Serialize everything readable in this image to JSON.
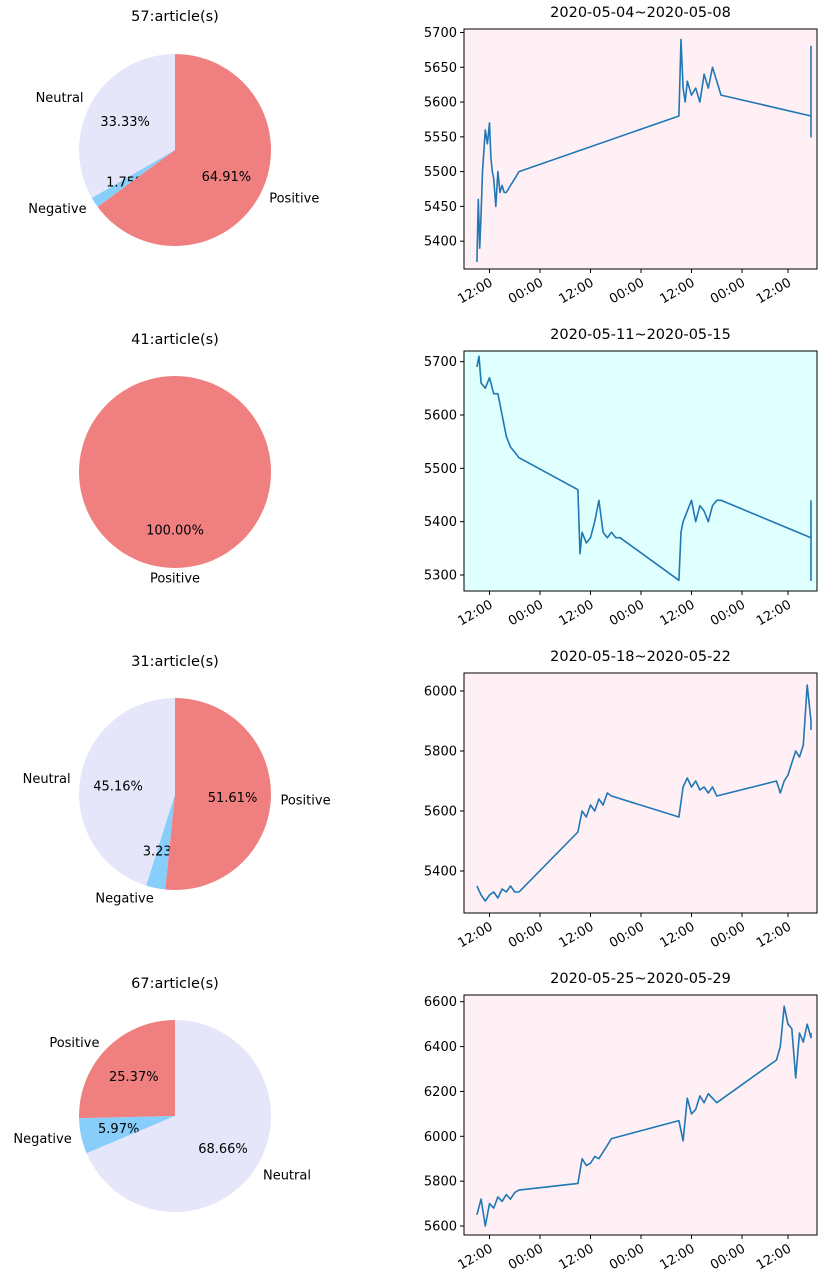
{
  "figure": {
    "background": "#ffffff",
    "line_color": "#1f77b4"
  },
  "chart_data": [
    {
      "type": "pie",
      "title": "57:article(s)",
      "slices": [
        {
          "label": "Neutral",
          "pct_label": "33.33%",
          "value": 19,
          "color": "#e6e6fa"
        },
        {
          "label": "Negative",
          "pct_label": "1.75%",
          "value": 1,
          "color": "#87cefa"
        },
        {
          "label": "Positive",
          "pct_label": "64.91%",
          "value": 37,
          "color": "#f08080"
        }
      ]
    },
    {
      "type": "line",
      "title": "2020-05-04~2020-05-08",
      "background": "#fff0f5",
      "x_tick_labels": [
        "12:00",
        "00:00",
        "12:00",
        "00:00",
        "12:00",
        "00:00",
        "12:00"
      ],
      "y_ticks": [
        5400,
        5450,
        5500,
        5550,
        5600,
        5650,
        5700
      ],
      "ylim": [
        5360,
        5705
      ],
      "x": [
        "2020-05-04 09:00",
        "2020-05-04 09:20",
        "2020-05-04 09:40",
        "2020-05-04 10:00",
        "2020-05-04 10:20",
        "2020-05-04 10:40",
        "2020-05-04 11:00",
        "2020-05-04 11:30",
        "2020-05-04 12:00",
        "2020-05-04 12:20",
        "2020-05-04 12:40",
        "2020-05-04 13:00",
        "2020-05-04 13:30",
        "2020-05-04 14:00",
        "2020-05-04 14:30",
        "2020-05-04 15:00",
        "2020-05-04 15:30",
        "2020-05-04 16:00",
        "2020-05-04 17:00",
        "2020-05-04 18:00",
        "2020-05-04 19:00",
        "2020-05-06 09:00",
        "2020-05-06 09:30",
        "2020-05-06 10:00",
        "2020-05-06 10:30",
        "2020-05-06 11:00",
        "2020-05-06 12:00",
        "2020-05-06 13:00",
        "2020-05-06 14:00",
        "2020-05-06 15:00",
        "2020-05-06 16:00",
        "2020-05-06 17:00",
        "2020-05-06 18:00",
        "2020-05-06 19:00",
        "2020-05-08 09:00",
        "2020-05-08 10:00",
        "2020-05-08 11:00",
        "2020-05-08 12:00",
        "2020-05-08 13:00",
        "2020-05-08 14:00",
        "2020-05-08 15:00",
        "2020-05-08 16:00",
        "2020-05-08 17:00",
        "2020-05-08 18:00",
        "2020-05-08 19:00"
      ],
      "y": [
        5370,
        5460,
        5390,
        5440,
        5500,
        5530,
        5560,
        5540,
        5570,
        5520,
        5500,
        5490,
        5450,
        5500,
        5470,
        5480,
        5470,
        5470,
        5480,
        5490,
        5500,
        5580,
        5690,
        5620,
        5600,
        5630,
        5610,
        5620,
        5600,
        5640,
        5620,
        5650,
        5630,
        5610,
        5580,
        5550,
        5590,
        5610,
        5630,
        5680,
        5650,
        5600,
        5610,
        5580,
        5590
      ]
    },
    {
      "type": "pie",
      "title": "41:article(s)",
      "slices": [
        {
          "label": "Positive",
          "pct_label": "100.00%",
          "value": 41,
          "color": "#f08080"
        }
      ]
    },
    {
      "type": "line",
      "title": "2020-05-11~2020-05-15",
      "background": "#e0ffff",
      "x_tick_labels": [
        "12:00",
        "00:00",
        "12:00",
        "00:00",
        "12:00",
        "00:00",
        "12:00"
      ],
      "y_ticks": [
        5300,
        5400,
        5500,
        5600,
        5700
      ],
      "ylim": [
        5270,
        5720
      ],
      "x": [
        "2020-05-11 09:00",
        "2020-05-11 09:30",
        "2020-05-11 10:00",
        "2020-05-11 11:00",
        "2020-05-11 12:00",
        "2020-05-11 13:00",
        "2020-05-11 14:00",
        "2020-05-11 15:00",
        "2020-05-11 15:30",
        "2020-05-11 16:00",
        "2020-05-11 17:00",
        "2020-05-11 18:00",
        "2020-05-11 19:00",
        "2020-05-12 09:00",
        "2020-05-12 09:30",
        "2020-05-12 10:00",
        "2020-05-12 11:00",
        "2020-05-12 12:00",
        "2020-05-12 13:00",
        "2020-05-12 14:00",
        "2020-05-12 15:00",
        "2020-05-12 16:00",
        "2020-05-12 17:00",
        "2020-05-12 18:00",
        "2020-05-12 19:00",
        "2020-05-13 09:00",
        "2020-05-13 09:30",
        "2020-05-13 10:00",
        "2020-05-13 11:00",
        "2020-05-13 12:00",
        "2020-05-13 13:00",
        "2020-05-13 14:00",
        "2020-05-13 15:00",
        "2020-05-13 16:00",
        "2020-05-13 17:00",
        "2020-05-13 18:00",
        "2020-05-13 19:00",
        "2020-05-15 09:00",
        "2020-05-15 09:30",
        "2020-05-15 10:00",
        "2020-05-15 11:00",
        "2020-05-15 12:00",
        "2020-05-15 13:00",
        "2020-05-15 14:00",
        "2020-05-15 15:00",
        "2020-05-15 16:00",
        "2020-05-15 17:00",
        "2020-05-15 18:00",
        "2020-05-15 19:00"
      ],
      "y": [
        5690,
        5710,
        5660,
        5650,
        5670,
        5640,
        5640,
        5600,
        5580,
        5560,
        5540,
        5530,
        5520,
        5460,
        5340,
        5380,
        5360,
        5370,
        5400,
        5440,
        5380,
        5370,
        5380,
        5370,
        5370,
        5290,
        5380,
        5400,
        5420,
        5440,
        5400,
        5430,
        5420,
        5400,
        5430,
        5440,
        5440,
        5370,
        5340,
        5330,
        5310,
        5320,
        5300,
        5290,
        5310,
        5300,
        5290,
        5300,
        5440
      ]
    },
    {
      "type": "pie",
      "title": "31:article(s)",
      "slices": [
        {
          "label": "Neutral",
          "pct_label": "45.16%",
          "value": 14,
          "color": "#e6e6fa"
        },
        {
          "label": "Negative",
          "pct_label": "3.23%",
          "value": 1,
          "color": "#87cefa"
        },
        {
          "label": "Positive",
          "pct_label": "51.61%",
          "value": 16,
          "color": "#f08080"
        }
      ]
    },
    {
      "type": "line",
      "title": "2020-05-18~2020-05-22",
      "background": "#fff0f5",
      "x_tick_labels": [
        "12:00",
        "00:00",
        "12:00",
        "00:00",
        "12:00",
        "00:00",
        "12:00"
      ],
      "y_ticks": [
        5400,
        5600,
        5800,
        6000
      ],
      "ylim": [
        5260,
        6060
      ],
      "x": [
        "2020-05-18 09:00",
        "2020-05-18 10:00",
        "2020-05-18 11:00",
        "2020-05-18 12:00",
        "2020-05-18 13:00",
        "2020-05-18 14:00",
        "2020-05-18 15:00",
        "2020-05-18 16:00",
        "2020-05-18 17:00",
        "2020-05-18 18:00",
        "2020-05-18 19:00",
        "2020-05-19 09:00",
        "2020-05-19 10:00",
        "2020-05-19 11:00",
        "2020-05-19 12:00",
        "2020-05-19 13:00",
        "2020-05-19 14:00",
        "2020-05-19 15:00",
        "2020-05-19 16:00",
        "2020-05-19 17:00",
        "2020-05-20 09:00",
        "2020-05-20 10:00",
        "2020-05-20 11:00",
        "2020-05-20 12:00",
        "2020-05-20 13:00",
        "2020-05-20 14:00",
        "2020-05-20 15:00",
        "2020-05-20 16:00",
        "2020-05-20 17:00",
        "2020-05-20 18:00",
        "2020-05-21 09:00",
        "2020-05-21 10:00",
        "2020-05-21 11:00",
        "2020-05-21 12:00",
        "2020-05-21 13:00",
        "2020-05-21 14:00",
        "2020-05-21 15:00",
        "2020-05-21 16:00",
        "2020-05-21 17:00",
        "2020-05-21 18:00",
        "2020-05-21 19:00"
      ],
      "y": [
        5350,
        5320,
        5300,
        5320,
        5330,
        5310,
        5340,
        5330,
        5350,
        5330,
        5330,
        5530,
        5600,
        5580,
        5620,
        5600,
        5640,
        5620,
        5660,
        5650,
        5580,
        5680,
        5710,
        5680,
        5700,
        5670,
        5680,
        5660,
        5680,
        5650,
        5700,
        5660,
        5700,
        5720,
        5760,
        5800,
        5780,
        5820,
        6020,
        5900,
        5870
      ]
    },
    {
      "type": "pie",
      "title": "67:article(s)",
      "slices": [
        {
          "label": "Positive",
          "pct_label": "25.37%",
          "value": 17,
          "color": "#f08080"
        },
        {
          "label": "Negative",
          "pct_label": "5.97%",
          "value": 4,
          "color": "#87cefa"
        },
        {
          "label": "Neutral",
          "pct_label": "68.66%",
          "value": 46,
          "color": "#e6e6fa"
        }
      ]
    },
    {
      "type": "line",
      "title": "2020-05-25~2020-05-29",
      "background": "#fff0f5",
      "x_tick_labels": [
        "12:00",
        "00:00",
        "12:00",
        "00:00",
        "12:00",
        "00:00",
        "12:00"
      ],
      "y_ticks": [
        5600,
        5800,
        6000,
        6200,
        6400,
        6600
      ],
      "ylim": [
        5560,
        6630
      ],
      "x": [
        "2020-05-25 09:00",
        "2020-05-25 10:00",
        "2020-05-25 11:00",
        "2020-05-25 12:00",
        "2020-05-25 13:00",
        "2020-05-25 14:00",
        "2020-05-25 15:00",
        "2020-05-25 16:00",
        "2020-05-25 17:00",
        "2020-05-25 18:00",
        "2020-05-25 19:00",
        "2020-05-26 09:00",
        "2020-05-26 10:00",
        "2020-05-26 11:00",
        "2020-05-26 12:00",
        "2020-05-26 13:00",
        "2020-05-26 14:00",
        "2020-05-26 15:00",
        "2020-05-26 16:00",
        "2020-05-26 17:00",
        "2020-05-27 09:00",
        "2020-05-27 10:00",
        "2020-05-27 11:00",
        "2020-05-27 12:00",
        "2020-05-27 13:00",
        "2020-05-27 14:00",
        "2020-05-27 15:00",
        "2020-05-27 16:00",
        "2020-05-27 17:00",
        "2020-05-27 18:00",
        "2020-05-28 09:00",
        "2020-05-28 10:00",
        "2020-05-28 11:00",
        "2020-05-28 12:00",
        "2020-05-28 13:00",
        "2020-05-28 14:00",
        "2020-05-28 15:00",
        "2020-05-28 16:00",
        "2020-05-28 17:00",
        "2020-05-28 18:00",
        "2020-05-28 19:00"
      ],
      "y": [
        5650,
        5720,
        5600,
        5700,
        5680,
        5730,
        5710,
        5740,
        5720,
        5750,
        5760,
        5790,
        5900,
        5870,
        5880,
        5910,
        5900,
        5930,
        5960,
        5990,
        6070,
        5980,
        6170,
        6100,
        6120,
        6180,
        6150,
        6190,
        6170,
        6150,
        6340,
        6400,
        6580,
        6500,
        6480,
        6260,
        6460,
        6420,
        6500,
        6440,
        6460
      ]
    }
  ]
}
